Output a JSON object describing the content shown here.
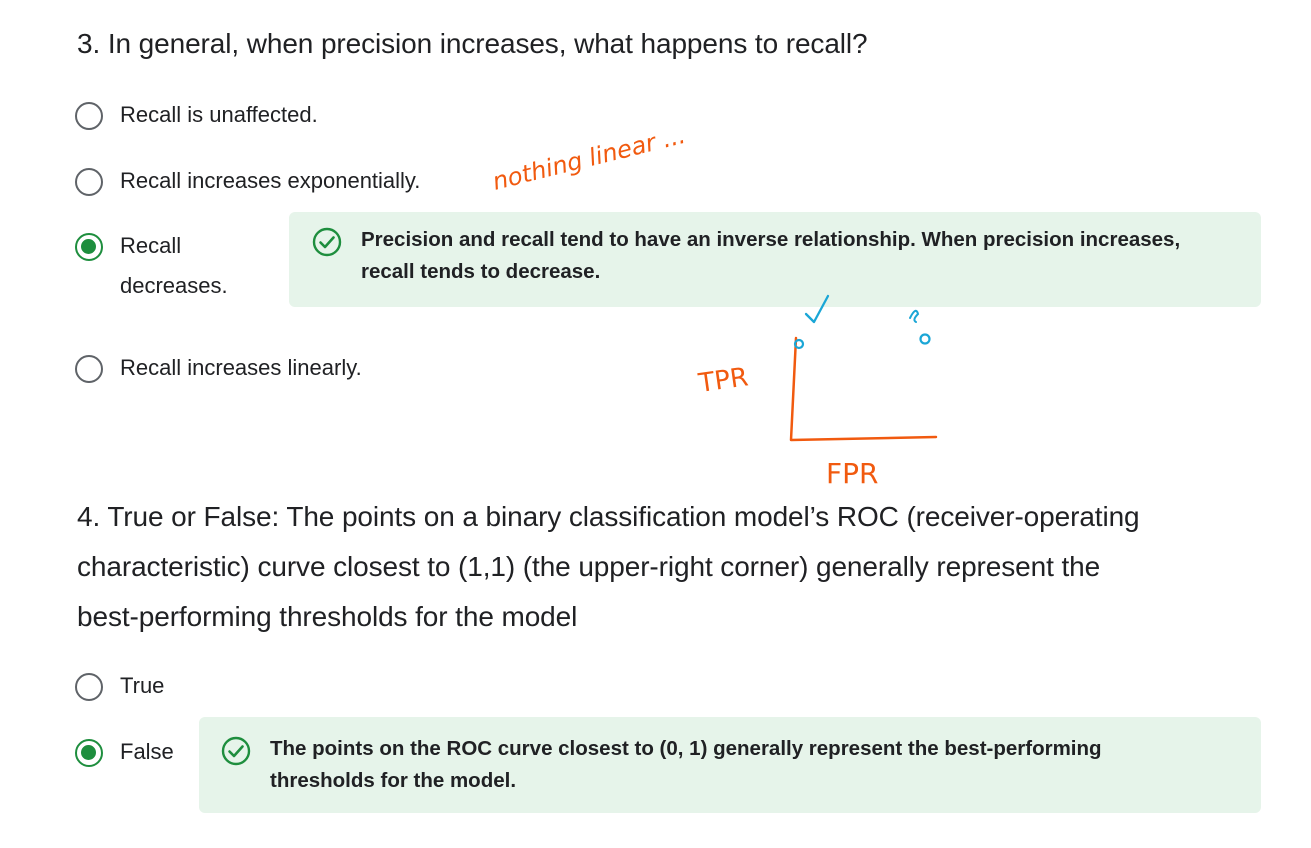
{
  "q3": {
    "title": "3. In general, when precision increases, what happens to recall?",
    "options": [
      {
        "label": "Recall is unaffected.",
        "selected": false
      },
      {
        "label": "Recall increases exponentially.",
        "selected": false
      },
      {
        "label_line1": "Recall",
        "label_line2": "decreases.",
        "selected": true
      },
      {
        "label": "Recall increases linearly.",
        "selected": false
      }
    ],
    "feedback": {
      "icon": "check-circle-icon",
      "line1": "Precision and recall tend to have an inverse relationship. When precision increases,",
      "line2": "recall tends to decrease."
    }
  },
  "q4": {
    "title_line1": "4. True or False: The points on a binary classification model’s ROC (receiver-operating",
    "title_line2": "characteristic) curve closest to (1,1) (the upper-right corner) generally represent the",
    "title_line3": "best-performing thresholds for the model",
    "options": [
      {
        "label": "True",
        "selected": false
      },
      {
        "label": "False",
        "selected": true
      }
    ],
    "feedback": {
      "icon": "check-circle-icon",
      "line1": "The points on the ROC curve closest to (0, 1) generally represent the best-performing",
      "line2": "thresholds for the model."
    }
  },
  "annotations": {
    "note_text": "nothing linear ...",
    "y_axis_label": "TPR",
    "x_axis_label": "FPR",
    "ink_orange": "#f15a0f",
    "ink_blue": "#1aa6d6"
  },
  "colors": {
    "accent_green": "#1e8e3e",
    "feedback_bg": "#e6f4ea",
    "text": "#202124",
    "radio_border": "#5f6368"
  }
}
